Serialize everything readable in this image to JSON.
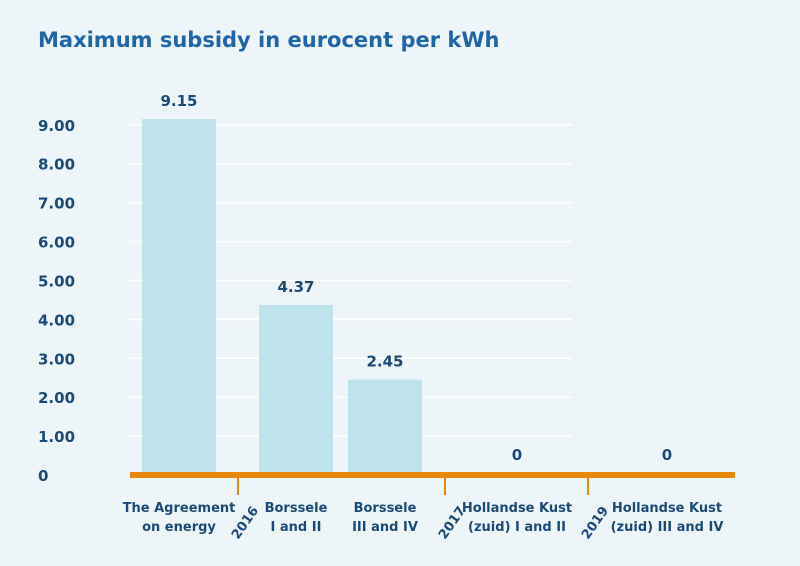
{
  "colors": {
    "background": "#eef5f9",
    "title": "#1f65a8",
    "bar": "#bfe3ec",
    "axis_line": "#e8870e",
    "tick_label": "#1b4a77",
    "value_label": "#1b4a77",
    "grid": "#ffffff"
  },
  "chart_data": {
    "type": "bar",
    "title": "Maximum subsidy in eurocent per kWh",
    "xlabel": "",
    "ylabel": "",
    "ylim": [
      0,
      9.15
    ],
    "grid": true,
    "y_ticks": [
      0,
      1,
      2,
      3,
      4,
      5,
      6,
      7,
      8,
      9
    ],
    "y_tick_labels": [
      "0",
      "1.00",
      "2.00",
      "3.00",
      "4.00",
      "5.00",
      "6.00",
      "7.00",
      "8.00",
      "9.00"
    ],
    "categories": [
      [
        "The Agreement",
        "on energy"
      ],
      [
        "Borssele",
        "I and II"
      ],
      [
        "Borssele",
        "III and IV"
      ],
      [
        "Hollandse Kust",
        "(zuid) I and II"
      ],
      [
        "Hollandse Kust",
        "(zuid) III and IV"
      ]
    ],
    "values": [
      9.15,
      4.37,
      2.45,
      0,
      0
    ],
    "value_labels": [
      "9.15",
      "4.37",
      "2.45",
      "0",
      "0"
    ],
    "year_markers": [
      {
        "label": "2016",
        "after_category": 0
      },
      {
        "label": "2017",
        "after_category": 2
      },
      {
        "label": "2019",
        "after_category": 3
      }
    ]
  }
}
